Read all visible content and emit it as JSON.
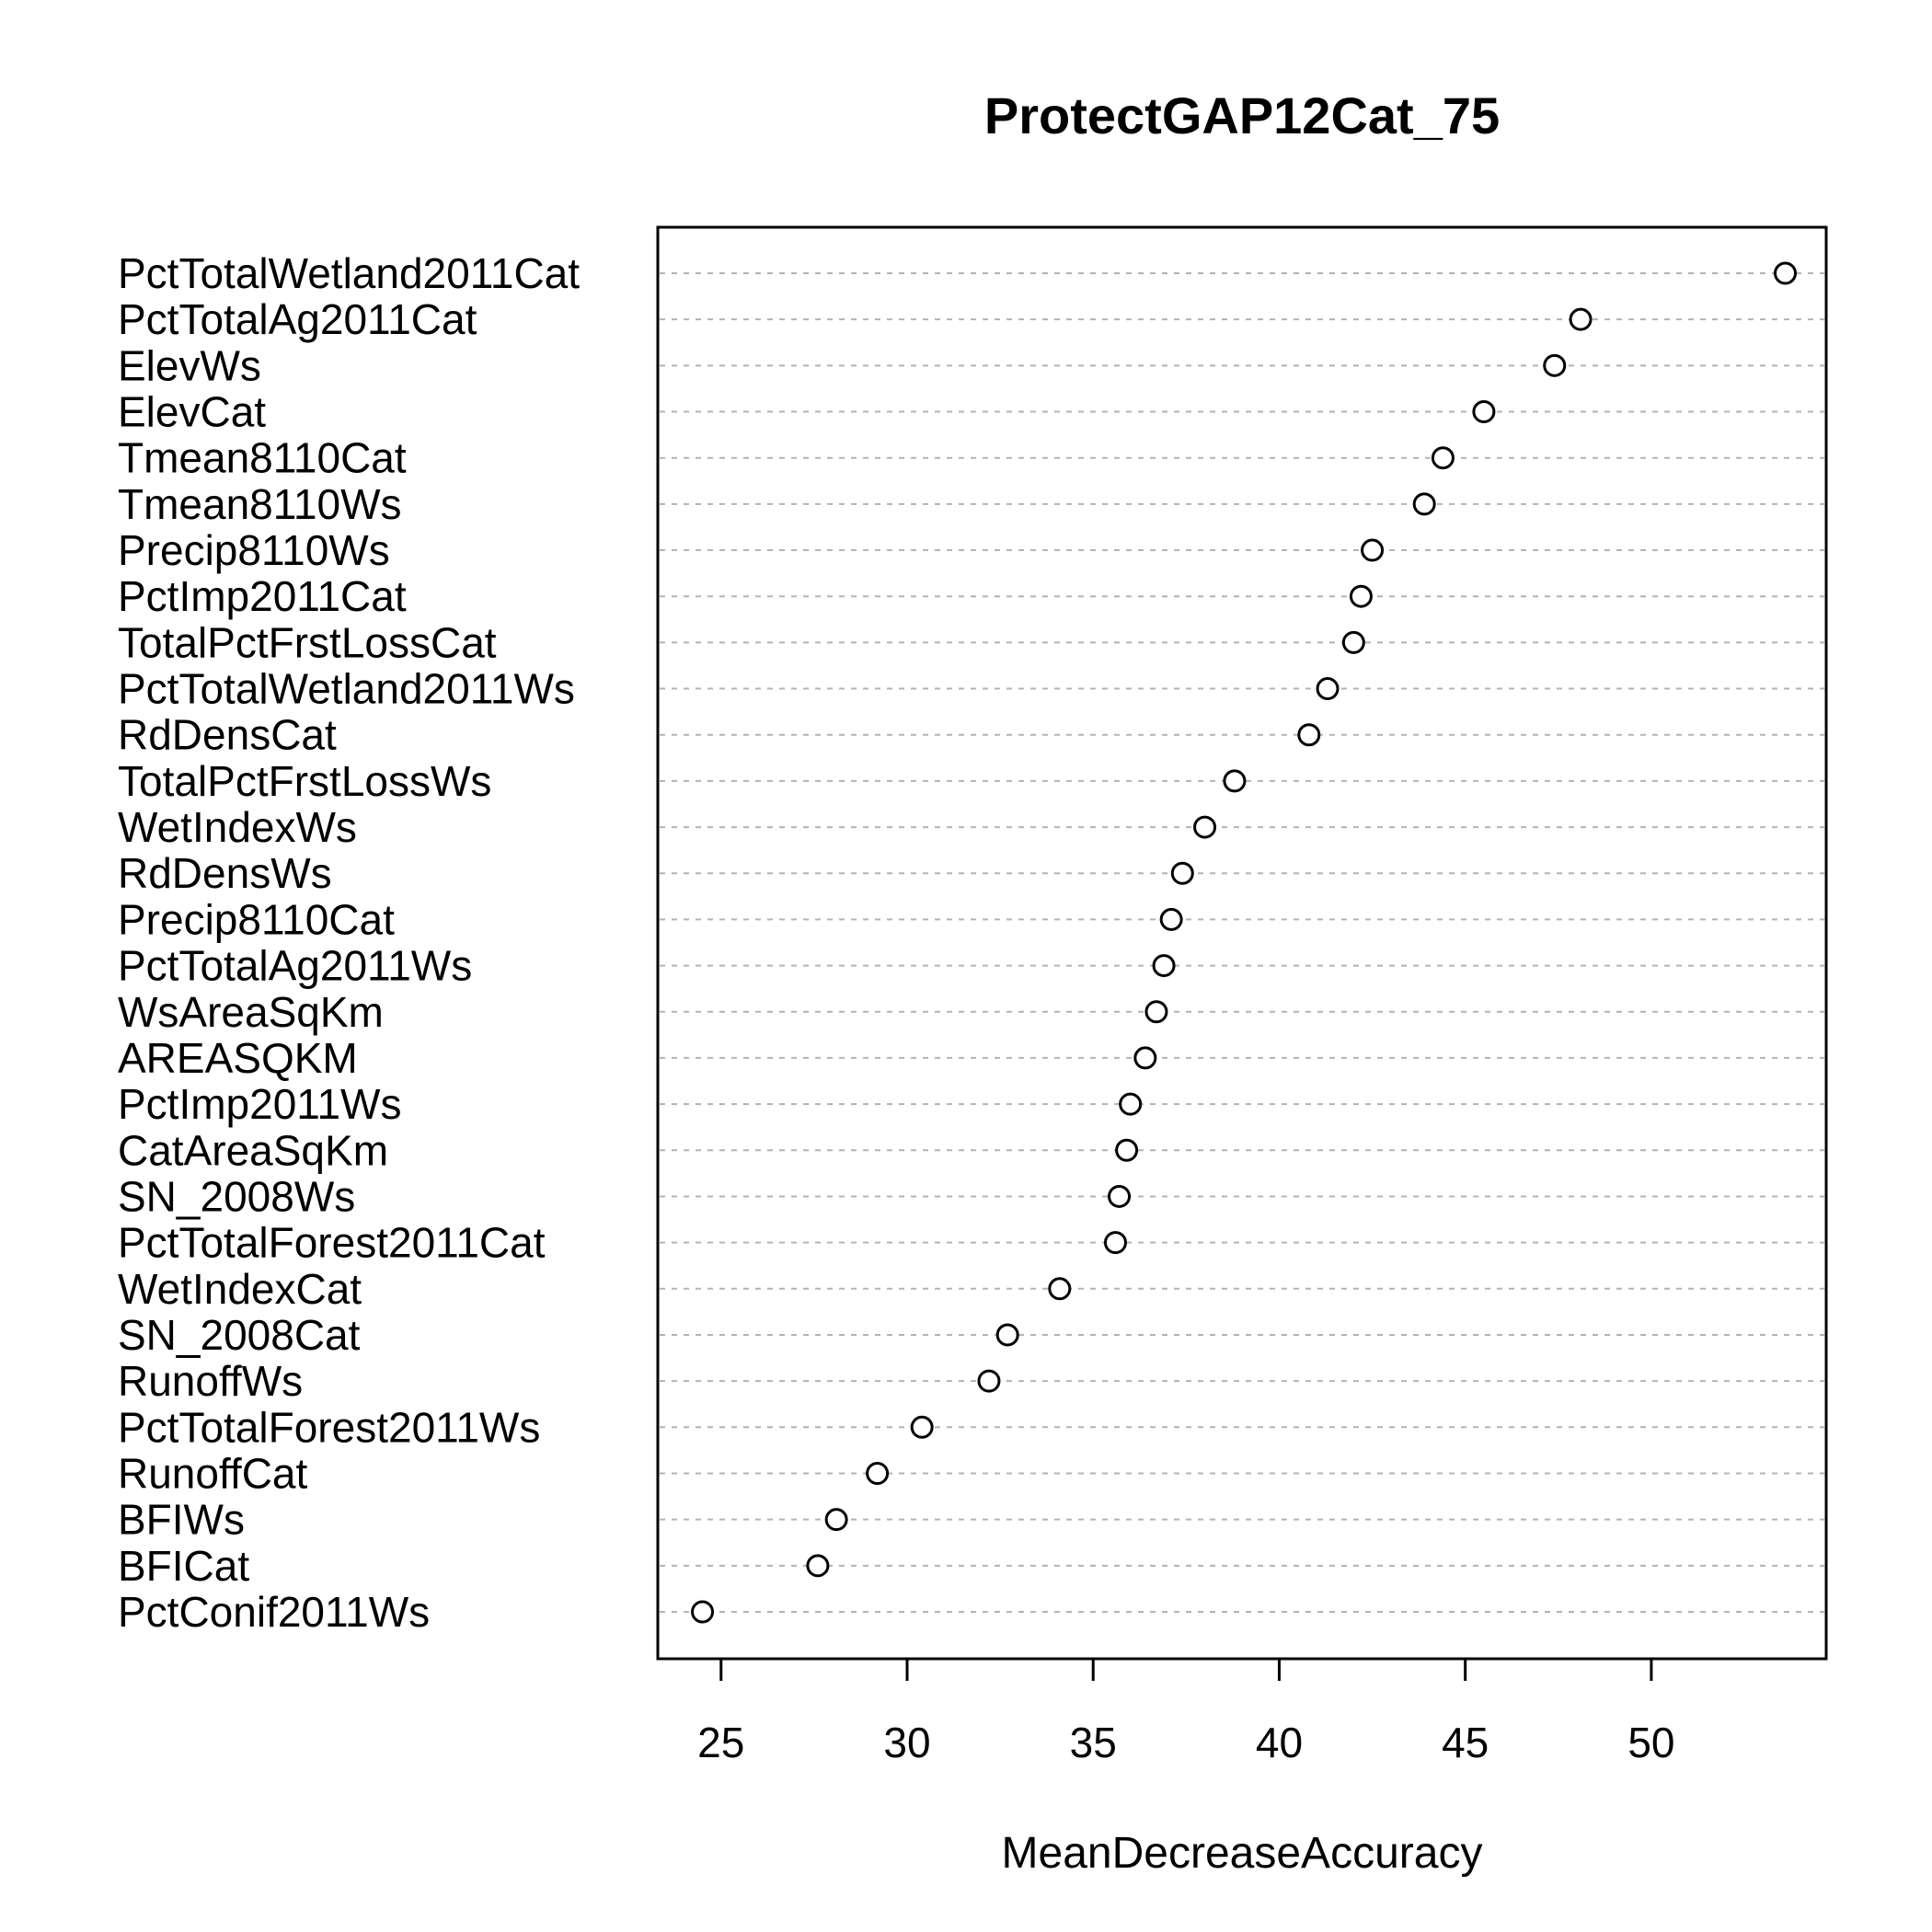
{
  "chart_data": {
    "type": "scatter",
    "title": "ProtectGAP12Cat_75",
    "xlabel": "MeanDecreaseAccuracy",
    "xlim": [
      23.3,
      54.7
    ],
    "xticks": [
      25,
      30,
      35,
      40,
      45,
      50
    ],
    "grid": true,
    "categories": [
      "PctTotalWetland2011Cat",
      "PctTotalAg2011Cat",
      "ElevWs",
      "ElevCat",
      "Tmean8110Cat",
      "Tmean8110Ws",
      "Precip8110Ws",
      "PctImp2011Cat",
      "TotalPctFrstLossCat",
      "PctTotalWetland2011Ws",
      "RdDensCat",
      "TotalPctFrstLossWs",
      "WetIndexWs",
      "RdDensWs",
      "Precip8110Cat",
      "PctTotalAg2011Ws",
      "WsAreaSqKm",
      "AREASQKM",
      "PctImp2011Ws",
      "CatAreaSqKm",
      "SN_2008Ws",
      "PctTotalForest2011Cat",
      "WetIndexCat",
      "SN_2008Cat",
      "RunoffWs",
      "PctTotalForest2011Ws",
      "RunoffCat",
      "BFIWs",
      "BFICat",
      "PctConif2011Ws"
    ],
    "values": [
      53.6,
      48.1,
      47.4,
      45.5,
      44.4,
      43.9,
      42.5,
      42.2,
      42.0,
      41.3,
      40.8,
      38.8,
      38.0,
      37.4,
      37.1,
      36.9,
      36.7,
      36.4,
      36.0,
      35.9,
      35.7,
      35.6,
      34.1,
      32.7,
      32.2,
      30.4,
      29.2,
      28.1,
      27.6,
      24.5
    ]
  }
}
